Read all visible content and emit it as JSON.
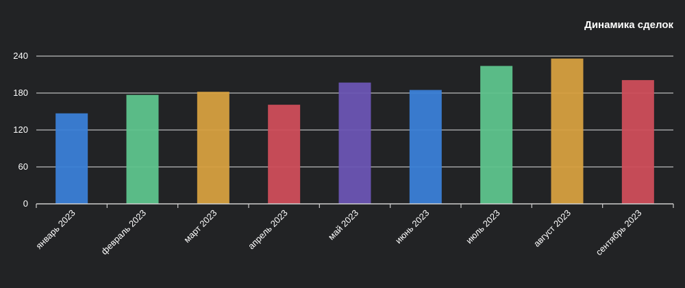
{
  "chart_data": {
    "type": "bar",
    "title": "Динамика сделок",
    "categories": [
      "январь 2023",
      "февраль 2023",
      "март 2023",
      "апрель 2023",
      "май 2023",
      "июнь 2023",
      "июль 2023",
      "август 2023",
      "сентябрь 2023"
    ],
    "values": [
      147,
      177,
      182,
      161,
      197,
      185,
      224,
      236,
      201
    ],
    "colors": [
      "#3b7fd6",
      "#5ec48c",
      "#d6a03f",
      "#cf4e5a",
      "#6b55b3",
      "#3b7fd6",
      "#5ec48c",
      "#d6a03f",
      "#cf4e5a"
    ],
    "yticks": [
      0,
      60,
      120,
      180,
      240
    ],
    "ylim": [
      0,
      240
    ],
    "xlabel": "",
    "ylabel": "",
    "grid": true
  }
}
